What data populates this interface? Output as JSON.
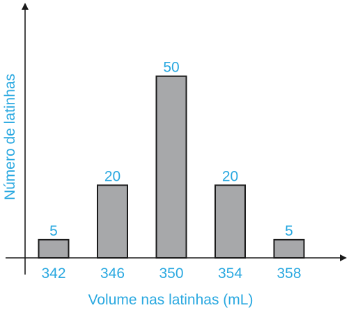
{
  "chart_data": {
    "type": "bar",
    "title": "",
    "xlabel": "Volume nas latinhas (mL)",
    "ylabel": "Número de latinhas",
    "categories": [
      "342",
      "346",
      "350",
      "354",
      "358"
    ],
    "values": [
      5,
      20,
      50,
      20,
      5
    ],
    "value_labels": [
      "5",
      "20",
      "50",
      "20",
      "5"
    ],
    "ylim": [
      0,
      66
    ],
    "grid": false,
    "legend": "none"
  },
  "colors": {
    "bar_fill": "#a7a8aa",
    "bar_stroke": "#1a1a1a",
    "axis": "#1a1a1a",
    "label": "#29a8e0"
  }
}
